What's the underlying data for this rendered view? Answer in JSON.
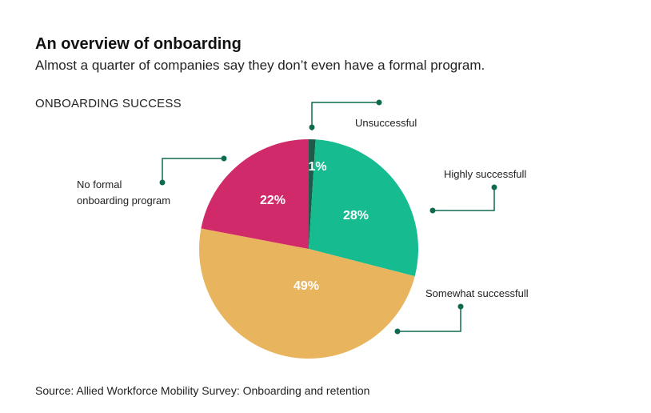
{
  "header": {
    "title": "An overview of onboarding",
    "subtitle": "Almost a quarter of companies say they don’t even have a formal  program."
  },
  "chart_data": {
    "type": "pie",
    "title": "ONBOARDING SUCCESS",
    "slices": [
      {
        "name": "Unsuccessful",
        "value": 1,
        "label": "1%",
        "color": "#1f5a4a"
      },
      {
        "name": "Highly successfull",
        "value": 28,
        "label": "28%",
        "color": "#17bb90"
      },
      {
        "name": "Somewhat successfull",
        "value": 49,
        "label": "49%",
        "color": "#e8b45e"
      },
      {
        "name": "No formal onboarding program",
        "value": 22,
        "label": "22%",
        "color": "#d12a6b"
      }
    ],
    "leader_color": "#0e6b50"
  },
  "footer": {
    "source": "Source: Allied Workforce Mobility Survey: Onboarding and retention"
  }
}
